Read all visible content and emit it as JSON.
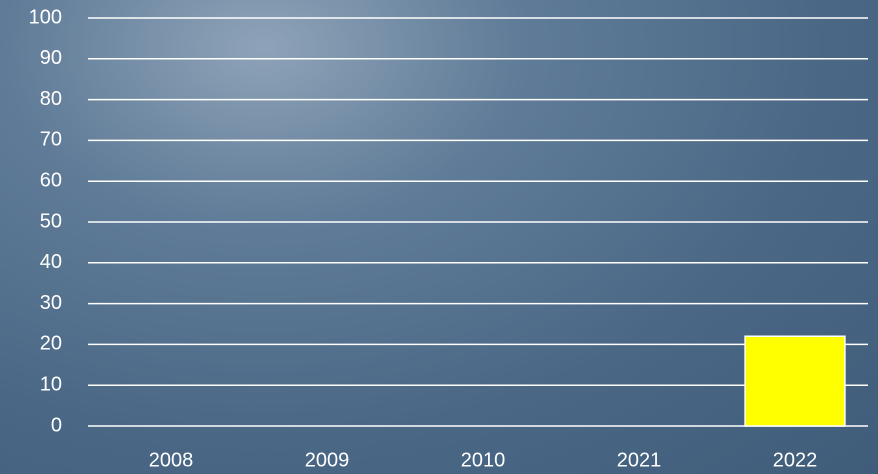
{
  "chart_data": {
    "type": "bar",
    "categories": [
      "2008",
      "2009",
      "2010",
      "2021",
      "2022"
    ],
    "values": [
      0,
      0,
      0,
      0,
      22
    ],
    "color": "#ffff00",
    "ylim": [
      0,
      100
    ],
    "yticks": [
      0,
      10,
      20,
      30,
      40,
      50,
      60,
      70,
      80,
      90,
      100
    ],
    "grid": true
  }
}
